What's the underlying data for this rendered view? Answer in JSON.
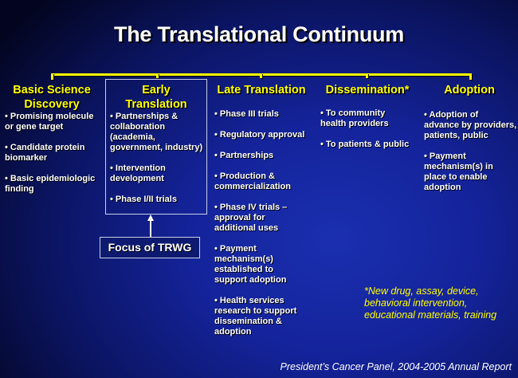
{
  "title": "The Translational Continuum",
  "accent_color": "#ffff00",
  "stages": [
    {
      "heading": "Basic Science\nDiscovery",
      "items": [
        "• Promising molecule\nor gene target",
        "• Candidate protein\nbiomarker",
        "• Basic epidemiologic\nfinding"
      ]
    },
    {
      "heading": "Early\nTranslation",
      "items": [
        "• Partnerships &\ncollaboration\n(academia,\ngovernment, industry)",
        "• Intervention\ndevelopment",
        "• Phase I/II trials"
      ]
    },
    {
      "heading": "Late Translation",
      "items": [
        "• Phase III trials",
        "• Regulatory approval",
        "• Partnerships",
        "• Production &\ncommercialization",
        "• Phase IV trials –\napproval for\nadditional uses",
        "• Payment\nmechanism(s)\nestablished to\nsupport adoption",
        "• Health services\nresearch to support\ndissemination &\nadoption"
      ]
    },
    {
      "heading": "Dissemination*",
      "items": [
        "• To community\nhealth providers",
        "• To patients & public"
      ]
    },
    {
      "heading": "Adoption",
      "items": [
        "• Adoption of\nadvance by providers,\npatients, public",
        "• Payment\nmechanism(s) in\nplace to enable\nadoption"
      ]
    }
  ],
  "focus_label": "Focus of TRWG",
  "footnote": "*New drug, assay, device,\nbehavioral intervention,\neducational materials, training",
  "source": "President’s Cancer Panel, 2004-2005 Annual Report"
}
